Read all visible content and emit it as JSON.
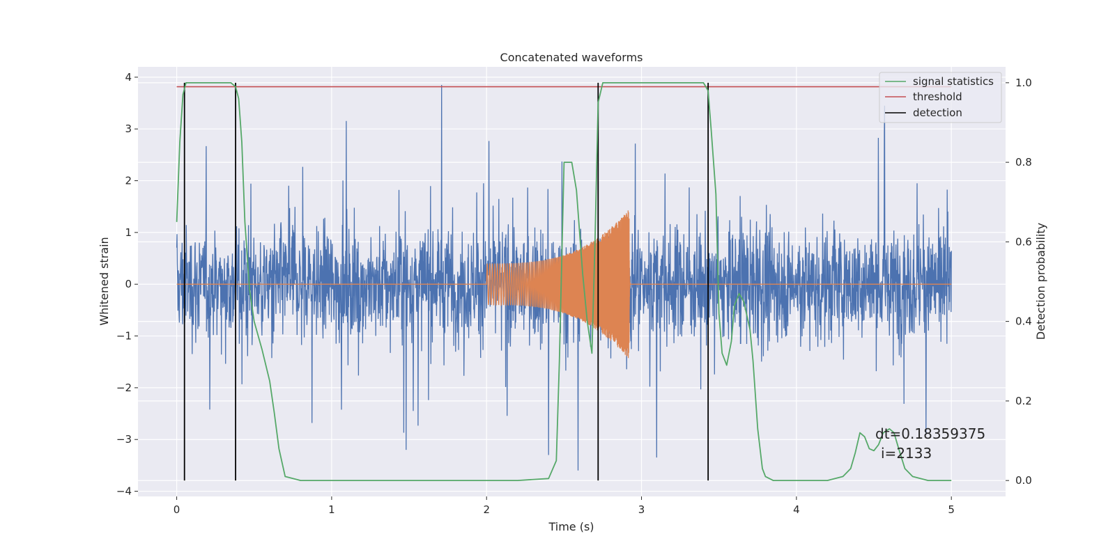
{
  "chart_data": {
    "type": "line",
    "title": "Concatenated waveforms",
    "xlabel": "Time (s)",
    "ylabel": "Whitened strain",
    "ylabel_right": "Detection probability",
    "xlim": [
      -0.25,
      5.35
    ],
    "ylim": [
      -4.1,
      4.2
    ],
    "ylim_right": [
      -0.04,
      1.04
    ],
    "xticks": [
      0,
      1,
      2,
      3,
      4,
      5
    ],
    "yticks": [
      -4,
      -3,
      -2,
      -1,
      0,
      1,
      2,
      3,
      4
    ],
    "yticks_right": [
      0.0,
      0.2,
      0.4,
      0.6,
      0.8,
      1.0
    ],
    "xtick_labels": [
      "0",
      "1",
      "2",
      "3",
      "4",
      "5"
    ],
    "ytick_labels": [
      "−4",
      "−3",
      "−2",
      "−1",
      "0",
      "1",
      "2",
      "3",
      "4"
    ],
    "ytick_labels_right": [
      "0.0",
      "0.2",
      "0.4",
      "0.6",
      "0.8",
      "1.0"
    ],
    "grid": true,
    "legend_position": "top-right",
    "legend": [
      "signal statistics",
      "threshold",
      "detection"
    ],
    "colors": {
      "strain": "#4c72b0",
      "template": "#dd8452",
      "signal_statistics": "#55a868",
      "threshold": "#c44e52",
      "detection": "#000000",
      "axes_bg": "#eaeaf2",
      "grid": "#ffffff"
    },
    "series": [
      {
        "role": "whitened-strain",
        "x_range": [
          0,
          5
        ],
        "approx_envelope": [
          -3.6,
          3.85
        ],
        "peaks": [
          [
            1.71,
            3.85
          ],
          [
            2.59,
            -3.6
          ],
          [
            4.57,
            3.45
          ],
          [
            1.48,
            -3.2
          ],
          [
            2.4,
            -3.3
          ]
        ]
      },
      {
        "role": "injected-chirp",
        "x_range": [
          2.0,
          2.93
        ],
        "amplitude_start": 0.4,
        "amplitude_end": 1.45,
        "peak_time": 2.92
      },
      {
        "name": "signal statistics",
        "x": [
          0,
          0.02,
          0.04,
          0.06,
          0.08,
          0.1,
          0.15,
          0.2,
          0.3,
          0.35,
          0.38,
          0.4,
          0.42,
          0.44,
          0.47,
          0.5,
          0.55,
          0.6,
          0.63,
          0.66,
          0.7,
          0.8,
          1,
          1.5,
          2,
          2.1,
          2.2,
          2.4,
          2.45,
          2.47,
          2.5,
          2.55,
          2.58,
          2.62,
          2.65,
          2.68,
          2.7,
          2.72,
          2.75,
          2.8,
          3,
          3.2,
          3.4,
          3.43,
          3.45,
          3.48,
          3.5,
          3.52,
          3.55,
          3.58,
          3.6,
          3.63,
          3.66,
          3.7,
          3.72,
          3.75,
          3.78,
          3.8,
          3.85,
          4,
          4.2,
          4.3,
          4.35,
          4.38,
          4.41,
          4.44,
          4.47,
          4.5,
          4.53,
          4.56,
          4.6,
          4.63,
          4.66,
          4.7,
          4.75,
          4.85,
          5
        ],
        "y": [
          0.65,
          0.85,
          0.97,
          1.0,
          1.0,
          1.0,
          1.0,
          1.0,
          1.0,
          1.0,
          0.99,
          0.96,
          0.85,
          0.65,
          0.48,
          0.4,
          0.33,
          0.25,
          0.17,
          0.08,
          0.01,
          0.0,
          0.0,
          0.0,
          0.0,
          0.0,
          0.0,
          0.005,
          0.05,
          0.3,
          0.8,
          0.8,
          0.73,
          0.52,
          0.4,
          0.32,
          0.6,
          0.95,
          1.0,
          1.0,
          1.0,
          1.0,
          1.0,
          0.98,
          0.88,
          0.72,
          0.42,
          0.32,
          0.29,
          0.35,
          0.44,
          0.47,
          0.45,
          0.38,
          0.3,
          0.13,
          0.03,
          0.01,
          0.0,
          0.0,
          0.0,
          0.01,
          0.03,
          0.07,
          0.12,
          0.11,
          0.08,
          0.075,
          0.09,
          0.12,
          0.13,
          0.12,
          0.08,
          0.03,
          0.01,
          0.0,
          0.0
        ]
      },
      {
        "name": "threshold",
        "x": [
          0,
          5
        ],
        "y": [
          0.99,
          0.99
        ]
      },
      {
        "name": "detection",
        "x": [
          0.05,
          0.38,
          2.72,
          3.43
        ],
        "y_range": [
          0.0,
          1.0
        ]
      }
    ],
    "annotation": {
      "line1": "dt=0.18359375",
      "line2": "i=2133"
    }
  }
}
